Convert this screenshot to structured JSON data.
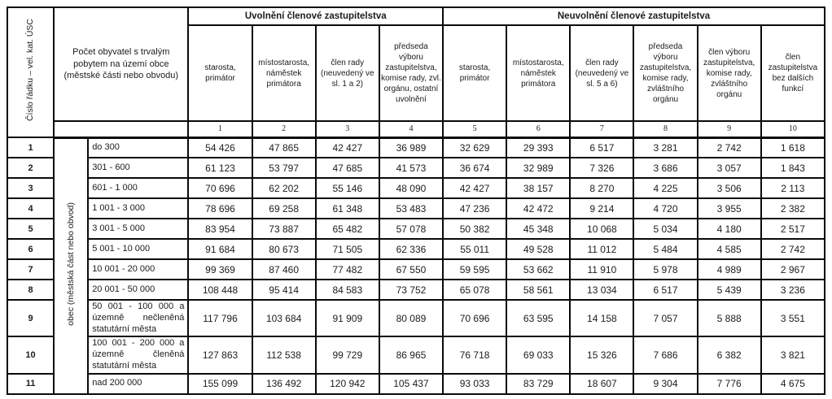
{
  "table": {
    "corner_header": "Číslo řádku – vel. kat. ÚSC",
    "population_header": "Počet obyvatel s trvalým pobytem na území obce (městské části nebo obvodu)",
    "group_uvolneni": "Uvolnění členové zastupitelstva",
    "group_neuvolneni": "Neuvolnění členové zastupitelstva",
    "row_group_label": "obec (městská část nebo obvod)",
    "columns": [
      {
        "num": "1",
        "label": "starosta, primátor"
      },
      {
        "num": "2",
        "label": "místostarosta, náměstek primátora"
      },
      {
        "num": "3",
        "label": "člen rady (neuvedený ve sl. 1 a 2)"
      },
      {
        "num": "4",
        "label": "předseda výboru zastupitelstva, komise rady, zvl. orgánu, ostatní uvolnění"
      },
      {
        "num": "5",
        "label": "starosta, primátor"
      },
      {
        "num": "6",
        "label": "místostarosta, náměstek primátora"
      },
      {
        "num": "7",
        "label": "člen rady (neuvedený ve sl. 5 a 6)"
      },
      {
        "num": "8",
        "label": "předseda výboru zastupitelstva, komise rady, zvláštního orgánu"
      },
      {
        "num": "9",
        "label": "člen výboru zastupitelstva, komise rady, zvláštního orgánu"
      },
      {
        "num": "10",
        "label": "člen zastupitelstva bez dalších funkcí"
      }
    ],
    "rows": [
      {
        "num": "1",
        "range": "do 300",
        "values": [
          "54 426",
          "47 865",
          "42 427",
          "36 989",
          "32 629",
          "29 393",
          "6 517",
          "3 281",
          "2 742",
          "1 618"
        ]
      },
      {
        "num": "2",
        "range": "301 - 600",
        "values": [
          "61 123",
          "53 797",
          "47 685",
          "41 573",
          "36 674",
          "32 989",
          "7 326",
          "3 686",
          "3 057",
          "1 843"
        ]
      },
      {
        "num": "3",
        "range": "601 - 1 000",
        "values": [
          "70 696",
          "62 202",
          "55 146",
          "48 090",
          "42 427",
          "38 157",
          "8 270",
          "4 225",
          "3 506",
          "2 113"
        ]
      },
      {
        "num": "4",
        "range": "1 001 - 3 000",
        "values": [
          "78 696",
          "69 258",
          "61 348",
          "53 483",
          "47 236",
          "42 472",
          "9 214",
          "4 720",
          "3 955",
          "2 382"
        ]
      },
      {
        "num": "5",
        "range": "3 001 - 5 000",
        "values": [
          "83 954",
          "73 887",
          "65 482",
          "57 078",
          "50 382",
          "45 348",
          "10 068",
          "5 034",
          "4 180",
          "2 517"
        ]
      },
      {
        "num": "6",
        "range": "5 001 - 10 000",
        "values": [
          "91 684",
          "80 673",
          "71 505",
          "62 336",
          "55 011",
          "49 528",
          "11 012",
          "5 484",
          "4 585",
          "2 742"
        ]
      },
      {
        "num": "7",
        "range": "10 001 - 20 000",
        "values": [
          "99 369",
          "87 460",
          "77 482",
          "67 550",
          "59 595",
          "53 662",
          "11 910",
          "5 978",
          "4 989",
          "2 967"
        ]
      },
      {
        "num": "8",
        "range": "20 001 - 50 000",
        "values": [
          "108 448",
          "95 414",
          "84 583",
          "73 752",
          "65 078",
          "58 561",
          "13 034",
          "6 517",
          "5 439",
          "3 236"
        ]
      },
      {
        "num": "9",
        "range": "50 001 - 100 000 a územně nečleněná statutární města",
        "values": [
          "117 796",
          "103 684",
          "91 909",
          "80 089",
          "70 696",
          "63 595",
          "14 158",
          "7 057",
          "5 888",
          "3 551"
        ]
      },
      {
        "num": "10",
        "range": "100 001 - 200 000 a územně členěná statutární města",
        "values": [
          "127 863",
          "112 538",
          "99 729",
          "86 965",
          "76 718",
          "69 033",
          "15 326",
          "7 686",
          "6 382",
          "3 821"
        ]
      },
      {
        "num": "11",
        "range": "nad 200 000",
        "values": [
          "155 099",
          "136 492",
          "120 942",
          "105 437",
          "93 033",
          "83 729",
          "18 607",
          "9 304",
          "7 776",
          "4 675"
        ]
      }
    ]
  }
}
